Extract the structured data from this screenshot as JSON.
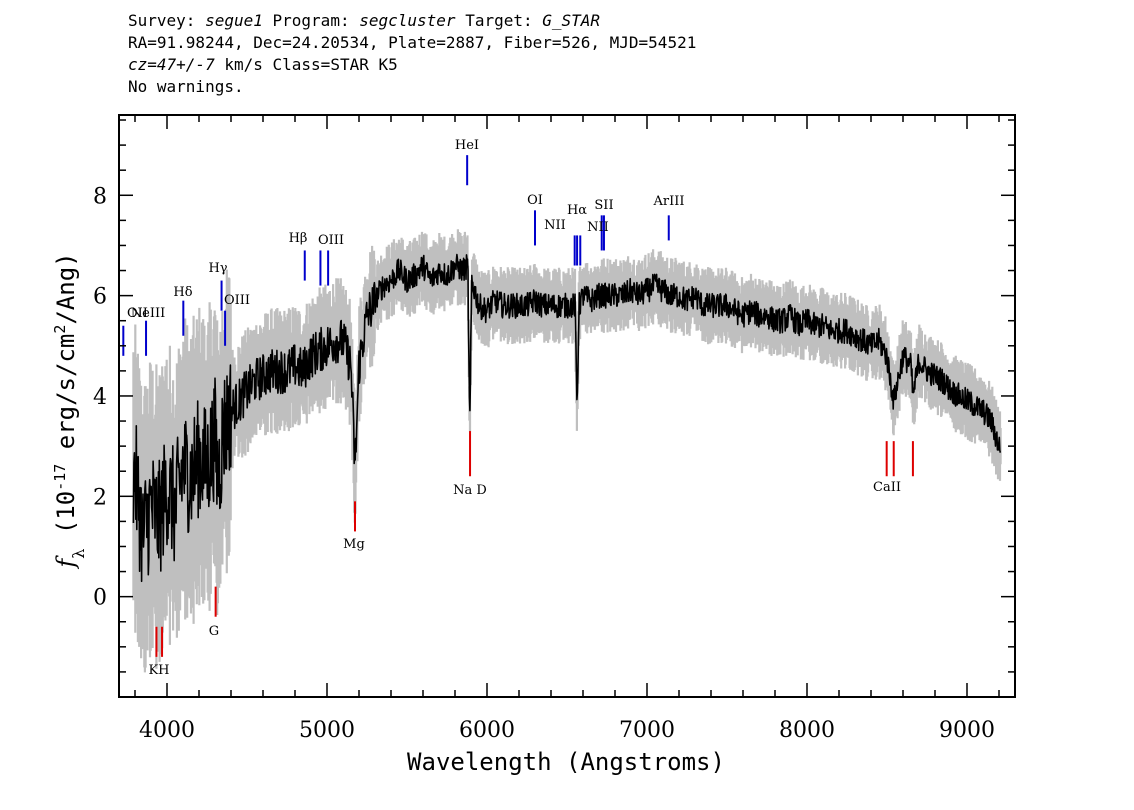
{
  "header": {
    "survey_label": "Survey:",
    "survey": "segue1",
    "program_label": "Program:",
    "program": "segcluster",
    "target_label": "Target:",
    "target": "G_STAR",
    "line2": "RA=91.98244, Dec=24.20534, Plate=2887, Fiber=526, MJD=54521",
    "redshift": "cz=47+/-7",
    "redshift_unit": "km/s",
    "class_text": "Class=STAR K5",
    "warnings": "No warnings."
  },
  "colors": {
    "spectrum": "#000000",
    "error_band": "#bfbfbf",
    "emission": "#0000cc",
    "absorption": "#dd0000"
  },
  "chart_data": {
    "type": "line",
    "xlabel": "Wavelength (Angstroms)",
    "ylabel": "f_λ (10^-17 erg/s/cm^2/Ang)",
    "xlim": [
      3700,
      9300
    ],
    "ylim": [
      -2,
      9.6
    ],
    "x_ticks": [
      4000,
      5000,
      6000,
      7000,
      8000,
      9000
    ],
    "y_ticks": [
      0,
      2,
      4,
      6,
      8
    ],
    "grid": false,
    "series": [
      {
        "role": "flux",
        "points": [
          [
            3800,
            2.4
          ],
          [
            3850,
            1.2
          ],
          [
            3900,
            1.8
          ],
          [
            3950,
            1.5
          ],
          [
            4000,
            2.2
          ],
          [
            4050,
            1.7
          ],
          [
            4100,
            2.6
          ],
          [
            4150,
            2.4
          ],
          [
            4200,
            2.8
          ],
          [
            4250,
            2.6
          ],
          [
            4300,
            3.2
          ],
          [
            4320,
            2.3
          ],
          [
            4350,
            3.3
          ],
          [
            4400,
            3.7
          ],
          [
            4450,
            3.9
          ],
          [
            4500,
            4.1
          ],
          [
            4550,
            4.3
          ],
          [
            4600,
            4.4
          ],
          [
            4650,
            4.5
          ],
          [
            4700,
            4.5
          ],
          [
            4750,
            4.5
          ],
          [
            4800,
            4.6
          ],
          [
            4850,
            4.5
          ],
          [
            4900,
            4.8
          ],
          [
            4950,
            4.9
          ],
          [
            5000,
            5.0
          ],
          [
            5050,
            5.1
          ],
          [
            5100,
            5.1
          ],
          [
            5150,
            4.6
          ],
          [
            5175,
            2.5
          ],
          [
            5200,
            4.6
          ],
          [
            5250,
            5.6
          ],
          [
            5300,
            5.9
          ],
          [
            5350,
            6.2
          ],
          [
            5400,
            6.3
          ],
          [
            5450,
            6.5
          ],
          [
            5500,
            6.3
          ],
          [
            5550,
            6.4
          ],
          [
            5600,
            6.6
          ],
          [
            5650,
            6.3
          ],
          [
            5700,
            6.5
          ],
          [
            5750,
            6.4
          ],
          [
            5800,
            6.6
          ],
          [
            5850,
            6.5
          ],
          [
            5880,
            6.6
          ],
          [
            5892,
            3.3
          ],
          [
            5905,
            6.3
          ],
          [
            5950,
            5.8
          ],
          [
            6000,
            5.7
          ],
          [
            6050,
            5.9
          ],
          [
            6100,
            5.8
          ],
          [
            6150,
            5.8
          ],
          [
            6200,
            5.8
          ],
          [
            6250,
            5.8
          ],
          [
            6300,
            5.9
          ],
          [
            6350,
            5.8
          ],
          [
            6400,
            5.8
          ],
          [
            6450,
            5.8
          ],
          [
            6500,
            5.8
          ],
          [
            6550,
            5.8
          ],
          [
            6563,
            3.8
          ],
          [
            6575,
            5.8
          ],
          [
            6600,
            6.0
          ],
          [
            6650,
            5.9
          ],
          [
            6700,
            6.0
          ],
          [
            6750,
            6.0
          ],
          [
            6800,
            6.0
          ],
          [
            6850,
            6.0
          ],
          [
            6900,
            6.1
          ],
          [
            6950,
            6.0
          ],
          [
            7000,
            6.1
          ],
          [
            7050,
            6.2
          ],
          [
            7100,
            6.1
          ],
          [
            7150,
            6.0
          ],
          [
            7200,
            6.0
          ],
          [
            7250,
            5.9
          ],
          [
            7300,
            6.0
          ],
          [
            7350,
            5.8
          ],
          [
            7400,
            5.8
          ],
          [
            7450,
            5.8
          ],
          [
            7500,
            5.8
          ],
          [
            7550,
            5.7
          ],
          [
            7600,
            5.6
          ],
          [
            7650,
            5.7
          ],
          [
            7700,
            5.6
          ],
          [
            7750,
            5.6
          ],
          [
            7800,
            5.5
          ],
          [
            7850,
            5.5
          ],
          [
            7900,
            5.6
          ],
          [
            7950,
            5.4
          ],
          [
            8000,
            5.5
          ],
          [
            8050,
            5.4
          ],
          [
            8100,
            5.4
          ],
          [
            8150,
            5.3
          ],
          [
            8200,
            5.3
          ],
          [
            8250,
            5.3
          ],
          [
            8300,
            5.2
          ],
          [
            8350,
            5.1
          ],
          [
            8400,
            5.0
          ],
          [
            8450,
            5.1
          ],
          [
            8498,
            4.8
          ],
          [
            8542,
            3.9
          ],
          [
            8600,
            4.8
          ],
          [
            8650,
            4.6
          ],
          [
            8662,
            4.0
          ],
          [
            8700,
            4.7
          ],
          [
            8750,
            4.5
          ],
          [
            8800,
            4.4
          ],
          [
            8850,
            4.3
          ],
          [
            8900,
            4.1
          ],
          [
            8950,
            4.0
          ],
          [
            9000,
            3.9
          ],
          [
            9050,
            3.8
          ],
          [
            9100,
            3.7
          ],
          [
            9150,
            3.5
          ],
          [
            9200,
            3.0
          ]
        ]
      }
    ],
    "emission_lines": [
      {
        "label": "OII",
        "wavelength": 3727,
        "y_top": 5.4,
        "y_bottom": 4.8
      },
      {
        "label": "NeIII",
        "wavelength": 3869,
        "y_top": 5.5,
        "y_bottom": 4.8
      },
      {
        "label": "Hδ",
        "wavelength": 4102,
        "y_top": 5.9,
        "y_bottom": 5.2
      },
      {
        "label": "Hγ",
        "wavelength": 4341,
        "y_top": 6.3,
        "y_bottom": 5.7
      },
      {
        "label": "OIII",
        "wavelength": 4363,
        "y_top": 5.7,
        "y_bottom": 5.0
      },
      {
        "label": "Hβ",
        "wavelength": 4861,
        "y_top": 6.9,
        "y_bottom": 6.3
      },
      {
        "label": "OIII",
        "wavelength": 4959,
        "y_top": 6.9,
        "y_bottom": 6.2
      },
      {
        "label": "OIII",
        "wavelength": 5007,
        "y_top": 6.9,
        "y_bottom": 6.2
      },
      {
        "label": "HeI",
        "wavelength": 5876,
        "y_top": 8.8,
        "y_bottom": 8.2
      },
      {
        "label": "OI",
        "wavelength": 6300,
        "y_top": 7.7,
        "y_bottom": 7.0
      },
      {
        "label": "NII",
        "wavelength": 6548,
        "y_top": 7.2,
        "y_bottom": 6.6
      },
      {
        "label": "Hα",
        "wavelength": 6563,
        "y_top": 7.2,
        "y_bottom": 6.6
      },
      {
        "label": "NII",
        "wavelength": 6583,
        "y_top": 7.2,
        "y_bottom": 6.6
      },
      {
        "label": "SII",
        "wavelength": 6717,
        "y_top": 7.6,
        "y_bottom": 6.9
      },
      {
        "label": "SII",
        "wavelength": 6731,
        "y_top": 7.6,
        "y_bottom": 6.9
      },
      {
        "label": "ArIII",
        "wavelength": 7136,
        "y_top": 7.6,
        "y_bottom": 7.1
      }
    ],
    "absorption_lines": [
      {
        "label": "K",
        "wavelength": 3934,
        "y_top": -0.6,
        "y_bottom": -1.2
      },
      {
        "label": "H",
        "wavelength": 3969,
        "y_top": -0.6,
        "y_bottom": -1.2
      },
      {
        "label": "G",
        "wavelength": 4304,
        "y_top": 0.2,
        "y_bottom": -0.4
      },
      {
        "label": "Mg",
        "wavelength": 5175,
        "y_top": 1.9,
        "y_bottom": 1.3
      },
      {
        "label": "Na",
        "wavelength": 5894,
        "y_top": 3.3,
        "y_bottom": 2.4
      },
      {
        "label": "CaII",
        "wavelength": 8498,
        "y_top": 3.1,
        "y_bottom": 2.4
      },
      {
        "label": "CaII",
        "wavelength": 8542,
        "y_top": 3.1,
        "y_bottom": 2.4
      },
      {
        "label": "CaII",
        "wavelength": 8662,
        "y_top": 3.1,
        "y_bottom": 2.4
      }
    ],
    "line_labels": [
      "OII",
      "NeIII",
      "Hδ",
      "Hγ",
      "OIII",
      "Hβ",
      "OIII",
      "HeI",
      "OI",
      "NII",
      "Hα",
      "SII",
      "NII",
      "ArIII",
      "KH",
      "G",
      "Mg",
      "Na D",
      "CaII"
    ]
  }
}
